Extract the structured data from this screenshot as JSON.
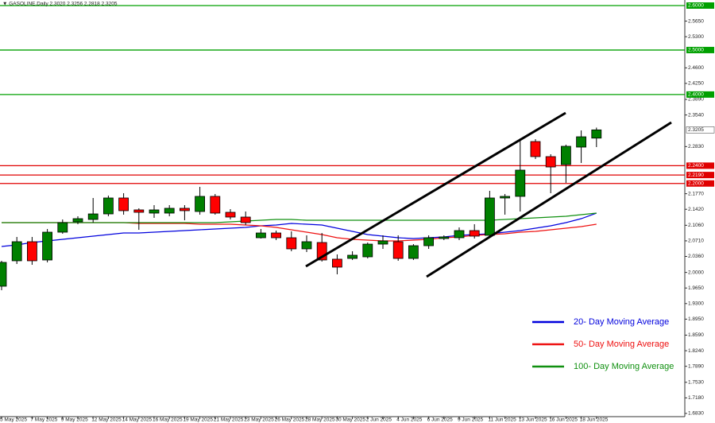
{
  "chart_data": {
    "type": "candlestick",
    "title": "▼ GASOLINE,Daily  2.3020 2.3256 2.2818 2.3205",
    "categories": [
      "5 May 2025",
      null,
      "7 May 2025",
      null,
      "9 May 2025",
      null,
      "12 May 2025",
      null,
      "14 May 2025",
      null,
      "16 May 2025",
      null,
      "19 May 2025",
      null,
      "21 May 2025",
      null,
      "23 May 2025",
      null,
      "26 May 2025",
      null,
      "28 May 2025",
      null,
      "30 May 2025",
      null,
      "2 Jun 2025",
      null,
      "4 Jun 2025",
      null,
      "6 Jun 2025",
      null,
      "9 Jun 2025",
      null,
      "11 Jun 2025",
      null,
      "13 Jun 2025",
      null,
      "16 Jun 2025",
      null,
      "18 Jun 2025",
      null
    ],
    "ohlc": {
      "open": [
        1.969,
        2.0262,
        2.0691,
        2.028,
        2.0905,
        2.1138,
        2.1191,
        2.1316,
        2.1674,
        2.1406,
        2.1334,
        2.1334,
        2.1442,
        2.137,
        2.171,
        2.1352,
        2.1245,
        2.078,
        2.0887,
        2.078,
        2.053,
        2.0673,
        2.0298,
        2.0315,
        2.0351,
        2.0637,
        2.0691,
        2.0315,
        2.0601,
        2.0762,
        2.078,
        2.0941,
        2.0834,
        2.1674,
        2.171,
        2.2943,
        2.2604,
        2.2425,
        2.2818,
        2.302
      ],
      "high": [
        2.0262,
        2.0798,
        2.0798,
        2.0977,
        2.1191,
        2.1263,
        2.1674,
        2.1728,
        2.1781,
        2.1442,
        2.1513,
        2.1513,
        2.1513,
        2.1924,
        2.1763,
        2.1424,
        2.137,
        2.0977,
        2.0941,
        2.0923,
        2.0834,
        2.0887,
        2.0405,
        2.0476,
        2.0673,
        2.0834,
        2.0834,
        2.0637,
        2.0834,
        2.0834,
        2.1013,
        2.1084,
        2.1835,
        2.1763,
        2.3015,
        2.2997,
        2.2657,
        2.2872,
        2.3193,
        2.3256
      ],
      "low": [
        1.96,
        2.019,
        2.0172,
        2.0226,
        2.087,
        2.1084,
        2.112,
        2.1263,
        2.1299,
        2.0959,
        2.1227,
        2.1263,
        2.1173,
        2.1299,
        2.1299,
        2.1191,
        2.1066,
        2.0762,
        2.0727,
        2.0476,
        2.0458,
        2.0244,
        1.9958,
        2.028,
        2.0315,
        2.053,
        2.0262,
        2.028,
        2.053,
        2.0727,
        2.0727,
        2.0762,
        2.078,
        2.1299,
        2.137,
        2.255,
        2.1781,
        2.2014,
        2.2461,
        2.2818
      ],
      "close": [
        2.0226,
        2.0691,
        2.0262,
        2.0905,
        2.112,
        2.1209,
        2.1316,
        2.1674,
        2.1388,
        2.1352,
        2.1406,
        2.1442,
        2.1388,
        2.171,
        2.1334,
        2.1245,
        2.112,
        2.0887,
        2.078,
        2.053,
        2.0691,
        2.028,
        2.0119,
        2.0387,
        2.0637,
        2.0709,
        2.0315,
        2.0601,
        2.078,
        2.0798,
        2.0941,
        2.0816,
        2.1674,
        2.171,
        2.23,
        2.2604,
        2.2371,
        2.2836,
        2.305,
        2.3205
      ],
      "up_color": "#008000",
      "down_color": "#ff0000"
    },
    "series": [
      {
        "name": "20- Day Moving Average",
        "color": "#0000dd",
        "values": [
          2.0584,
          2.0619,
          2.0673,
          2.0709,
          2.0744,
          2.078,
          2.0816,
          2.0852,
          2.0887,
          2.0887,
          2.0905,
          2.0923,
          2.0941,
          2.0959,
          2.0977,
          2.0995,
          2.1013,
          2.1048,
          2.1066,
          2.1102,
          2.1084,
          2.1066,
          2.0995,
          2.0923,
          2.0852,
          2.0816,
          2.078,
          2.0762,
          2.078,
          2.0798,
          2.0834,
          2.0852,
          2.087,
          2.0905,
          2.0941,
          2.0995,
          2.1048,
          2.112,
          2.1209,
          2.1334
        ]
      },
      {
        "name": "50- Day Moving Average",
        "color": "#ee1111",
        "values": [
          2.112,
          2.112,
          2.112,
          2.112,
          2.112,
          2.112,
          2.112,
          2.112,
          2.112,
          2.1102,
          2.1102,
          2.1102,
          2.1102,
          2.1084,
          2.1084,
          2.1084,
          2.1066,
          2.1048,
          2.1013,
          2.0959,
          2.0905,
          2.0852,
          2.078,
          2.0744,
          2.0727,
          2.0709,
          2.0709,
          2.0727,
          2.0744,
          2.078,
          2.0798,
          2.0834,
          2.0852,
          2.087,
          2.0905,
          2.0923,
          2.0959,
          2.0995,
          2.103,
          2.1084
        ]
      },
      {
        "name": "100- Day Moving Average",
        "color": "#109010",
        "values": [
          2.112,
          2.112,
          2.112,
          2.112,
          2.112,
          2.112,
          2.112,
          2.112,
          2.112,
          2.112,
          2.112,
          2.112,
          2.112,
          2.112,
          2.112,
          2.1138,
          2.1156,
          2.1173,
          2.1191,
          2.1191,
          2.1173,
          2.1173,
          2.1173,
          2.1173,
          2.1173,
          2.1173,
          2.1173,
          2.1173,
          2.1173,
          2.1173,
          2.1173,
          2.1173,
          2.1173,
          2.1191,
          2.1209,
          2.1227,
          2.1245,
          2.1263,
          2.1299,
          2.1334
        ]
      }
    ],
    "levels": [
      {
        "value": 2.6,
        "label": "2.6000",
        "color": "#00a000"
      },
      {
        "value": 2.5,
        "label": "2.5000",
        "color": "#00a000"
      },
      {
        "value": 2.4,
        "label": "2.4000",
        "color": "#00a000"
      },
      {
        "value": 2.24,
        "label": "2.2400",
        "color": "#e00000"
      },
      {
        "value": 2.219,
        "label": "2.2190",
        "color": "#e00000"
      },
      {
        "value": 2.2,
        "label": "2.2000",
        "color": "#e00000"
      }
    ],
    "last_price": {
      "value": 2.3205,
      "label": "2.3205"
    },
    "ylim": [
      1.6758,
      2.6125
    ],
    "yticks": [
      {
        "value": 2.565,
        "label": "2.5650"
      },
      {
        "value": 2.53,
        "label": "2.5300"
      },
      {
        "value": 2.46,
        "label": "2.4600"
      },
      {
        "value": 2.425,
        "label": "2.4250"
      },
      {
        "value": 2.389,
        "label": "2.3890"
      },
      {
        "value": 2.354,
        "label": "2.3540"
      },
      {
        "value": 2.283,
        "label": "2.2830"
      },
      {
        "value": 2.177,
        "label": "2.1770"
      },
      {
        "value": 2.142,
        "label": "2.1420"
      },
      {
        "value": 2.106,
        "label": "2.1060"
      },
      {
        "value": 2.071,
        "label": "2.0710"
      },
      {
        "value": 2.036,
        "label": "2.0360"
      },
      {
        "value": 2.0,
        "label": "2.0000"
      },
      {
        "value": 1.965,
        "label": "1.9650"
      },
      {
        "value": 1.93,
        "label": "1.9300"
      },
      {
        "value": 1.895,
        "label": "1.8950"
      },
      {
        "value": 1.859,
        "label": "1.8590"
      },
      {
        "value": 1.824,
        "label": "1.8240"
      },
      {
        "value": 1.789,
        "label": "1.7890"
      },
      {
        "value": 1.753,
        "label": "1.7530"
      },
      {
        "value": 1.718,
        "label": "1.7180"
      },
      {
        "value": 1.683,
        "label": "1.6830"
      }
    ],
    "grid": false,
    "legend": "bottom-right"
  }
}
